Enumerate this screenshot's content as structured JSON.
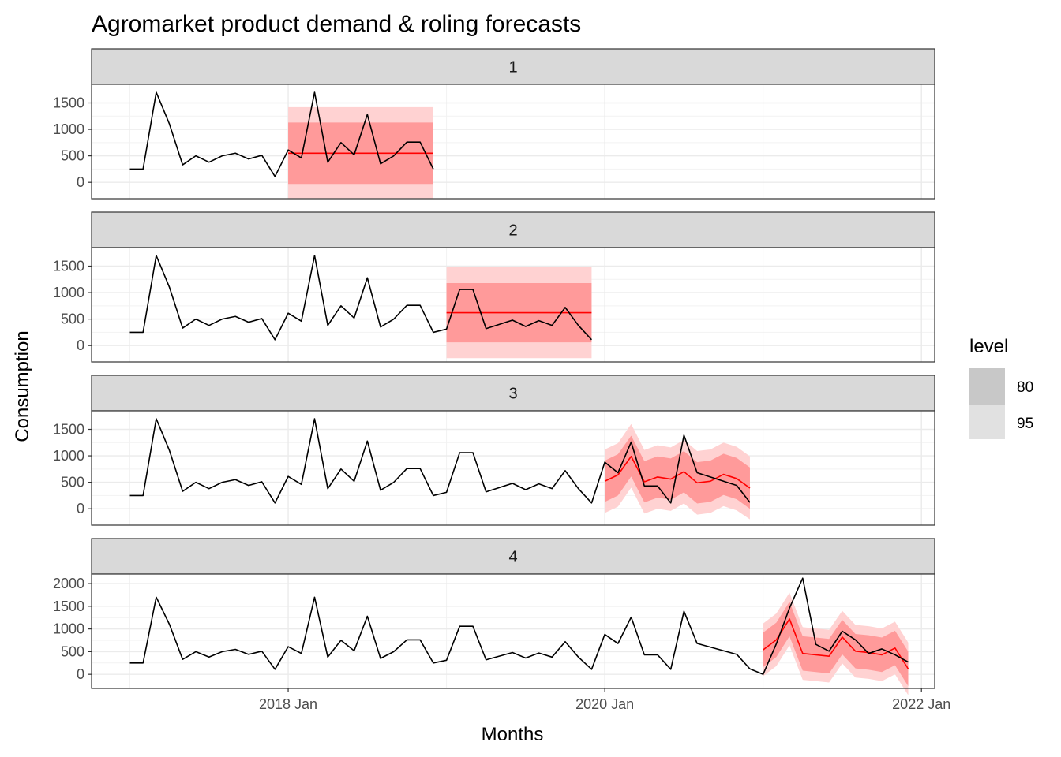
{
  "chart_data": {
    "type": "line",
    "title": "Agromarket product demand & roling forecasts",
    "xlabel": "Months",
    "ylabel": "Consumption",
    "x_ticks": [
      "2018 Jan",
      "2020 Jan",
      "2022 Jan"
    ],
    "legend": {
      "title": "level",
      "position": "right",
      "entries": [
        "80",
        "95"
      ]
    },
    "colors": {
      "actual": "#000000",
      "forecast": "#ff0000",
      "band80": "#ff9a9a",
      "band95": "#ffd2d2",
      "strip": "#d9d9d9",
      "legend80": "#c8c8c8",
      "legend95": "#e1e1e1"
    },
    "actual_series": {
      "start": "2017-01",
      "values": [
        250,
        250,
        1700,
        1100,
        330,
        500,
        380,
        500,
        550,
        440,
        510,
        110,
        610,
        460,
        1700,
        380,
        750,
        520,
        1280,
        350,
        500,
        760,
        760,
        250,
        310,
        1060,
        1060,
        320,
        400,
        480,
        360,
        470,
        380,
        720,
        380,
        110,
        880,
        680,
        1260,
        430,
        430,
        110,
        1390,
        680,
        600,
        520,
        440,
        120,
        0,
        670,
        1460,
        2120,
        660,
        510,
        950,
        760,
        460,
        560,
        430,
        270
      ]
    },
    "panels": [
      {
        "label": "1",
        "yticks": [
          0,
          500,
          1000,
          1500
        ],
        "ylim": [
          -310,
          1850
        ],
        "actual_end": "2018-12",
        "forecast": {
          "start": "2018-01",
          "end": "2018-12",
          "mean": [
            550,
            550,
            550,
            550,
            550,
            550,
            550,
            550,
            550,
            550,
            550,
            550
          ],
          "lo80": [
            -30,
            -30,
            -30,
            -30,
            -30,
            -30,
            -30,
            -30,
            -30,
            -30,
            -30,
            -30
          ],
          "hi80": [
            1130,
            1130,
            1130,
            1130,
            1130,
            1130,
            1130,
            1130,
            1130,
            1130,
            1130,
            1130
          ],
          "lo95": [
            -300,
            -300,
            -300,
            -300,
            -300,
            -300,
            -300,
            -300,
            -300,
            -300,
            -300,
            -300
          ],
          "hi95": [
            1420,
            1420,
            1420,
            1420,
            1420,
            1420,
            1420,
            1420,
            1420,
            1420,
            1420,
            1420
          ]
        }
      },
      {
        "label": "2",
        "yticks": [
          0,
          500,
          1000,
          1500
        ],
        "ylim": [
          -310,
          1850
        ],
        "actual_end": "2019-12",
        "forecast": {
          "start": "2019-01",
          "end": "2019-12",
          "mean": [
            620,
            620,
            620,
            620,
            620,
            620,
            620,
            620,
            620,
            620,
            620,
            620
          ],
          "lo80": [
            60,
            60,
            60,
            60,
            60,
            60,
            60,
            60,
            60,
            60,
            60,
            60
          ],
          "hi80": [
            1180,
            1180,
            1180,
            1180,
            1180,
            1180,
            1180,
            1180,
            1180,
            1180,
            1180,
            1180
          ],
          "lo95": [
            -240,
            -240,
            -240,
            -240,
            -240,
            -240,
            -240,
            -240,
            -240,
            -240,
            -240,
            -240
          ],
          "hi95": [
            1480,
            1480,
            1480,
            1480,
            1480,
            1480,
            1480,
            1480,
            1480,
            1480,
            1480,
            1480
          ]
        }
      },
      {
        "label": "3",
        "yticks": [
          0,
          500,
          1000,
          1500
        ],
        "ylim": [
          -310,
          1850
        ],
        "actual_end": "2020-12",
        "forecast": {
          "start": "2020-01",
          "end": "2020-12",
          "mean": [
            520,
            640,
            990,
            510,
            600,
            560,
            700,
            490,
            520,
            650,
            570,
            390
          ],
          "lo80": [
            130,
            250,
            610,
            120,
            210,
            170,
            310,
            100,
            130,
            260,
            180,
            0
          ],
          "hi80": [
            910,
            1030,
            1380,
            900,
            990,
            950,
            1090,
            880,
            910,
            1040,
            960,
            780
          ],
          "lo95": [
            -80,
            40,
            400,
            -90,
            0,
            -40,
            100,
            -110,
            -80,
            50,
            -30,
            -200
          ],
          "hi95": [
            1120,
            1240,
            1600,
            1110,
            1200,
            1160,
            1300,
            1090,
            1120,
            1250,
            1170,
            990
          ]
        }
      },
      {
        "label": "4",
        "yticks": [
          0,
          500,
          1000,
          1500,
          2000
        ],
        "ylim": [
          -310,
          2210
        ],
        "actual_end": "2021-12",
        "forecast": {
          "start": "2021-01",
          "end": "2021-12",
          "mean": [
            540,
            760,
            1220,
            460,
            430,
            400,
            820,
            510,
            480,
            430,
            580,
            120
          ],
          "lo80": [
            160,
            380,
            840,
            80,
            50,
            20,
            440,
            130,
            100,
            50,
            200,
            -260
          ],
          "hi80": [
            920,
            1140,
            1600,
            840,
            810,
            780,
            1200,
            890,
            860,
            810,
            960,
            500
          ],
          "lo95": [
            -40,
            180,
            640,
            -120,
            -150,
            -180,
            240,
            -70,
            -100,
            -150,
            0,
            -460
          ],
          "hi95": [
            1120,
            1340,
            1800,
            1040,
            1010,
            980,
            1400,
            1090,
            1060,
            1010,
            1160,
            700
          ]
        }
      }
    ]
  }
}
